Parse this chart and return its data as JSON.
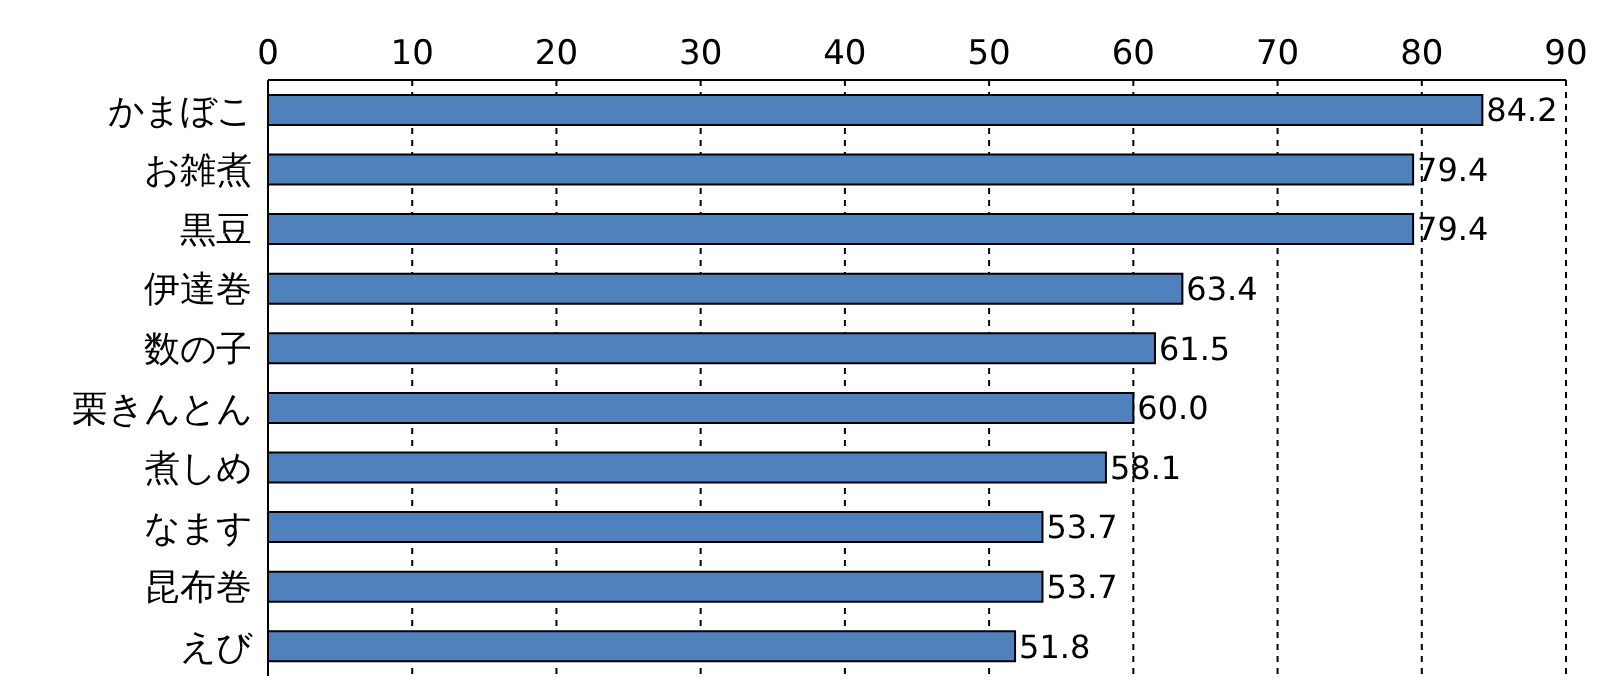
{
  "chart_data": {
    "type": "bar",
    "orientation": "horizontal",
    "categories": [
      "かまぼこ",
      "お雑煮",
      "黒豆",
      "伊達巻",
      "数の子",
      "栗きんとん",
      "煮しめ",
      "なます",
      "昆布巻",
      "えび"
    ],
    "values": [
      84.2,
      79.4,
      79.4,
      63.4,
      61.5,
      60.0,
      58.1,
      53.7,
      53.7,
      51.8
    ],
    "value_labels": [
      "84.2",
      "79.4",
      "79.4",
      "63.4",
      "61.5",
      "60.0",
      "58.1",
      "53.7",
      "53.7",
      "51.8"
    ],
    "color": "#4f81bd",
    "xlim": [
      0,
      90
    ],
    "xticks": [
      0,
      10,
      20,
      30,
      40,
      50,
      60,
      70,
      80,
      90
    ],
    "grid": "x"
  }
}
